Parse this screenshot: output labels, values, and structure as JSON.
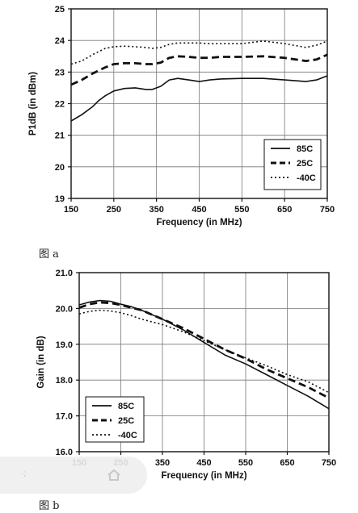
{
  "captions": {
    "a": "图 a",
    "b": "图 b"
  },
  "overlay": {
    "glyph": "·;",
    "home_icon": "home-icon"
  },
  "colors": {
    "line": "#111111",
    "grid": "#777777",
    "background": "#ffffff"
  },
  "chart_data": [
    {
      "type": "line",
      "title": "",
      "xlabel": "Frequency (in MHz)",
      "ylabel": "P1dB (in dBm)",
      "xlim": [
        150,
        750
      ],
      "ylim": [
        19,
        25
      ],
      "xticks": [
        150,
        250,
        350,
        450,
        550,
        650,
        750
      ],
      "yticks": [
        19,
        20,
        21,
        22,
        23,
        24,
        25
      ],
      "ytick_labels": [
        "19",
        "20",
        "21",
        "22",
        "23",
        "24",
        "25"
      ],
      "grid": true,
      "legend_position": "bottom-right",
      "x": [
        150,
        175,
        200,
        215,
        230,
        250,
        275,
        300,
        325,
        340,
        360,
        380,
        400,
        425,
        450,
        475,
        500,
        550,
        600,
        650,
        700,
        725,
        750
      ],
      "series": [
        {
          "name": "85C",
          "style": "solid",
          "values": [
            21.45,
            21.65,
            21.9,
            22.1,
            22.25,
            22.4,
            22.48,
            22.5,
            22.45,
            22.45,
            22.55,
            22.75,
            22.8,
            22.75,
            22.7,
            22.75,
            22.78,
            22.8,
            22.8,
            22.75,
            22.7,
            22.75,
            22.88
          ]
        },
        {
          "name": "25C",
          "style": "dashed",
          "values": [
            22.6,
            22.75,
            22.95,
            23.05,
            23.15,
            23.25,
            23.28,
            23.28,
            23.25,
            23.25,
            23.3,
            23.45,
            23.5,
            23.48,
            23.45,
            23.45,
            23.48,
            23.48,
            23.5,
            23.45,
            23.35,
            23.4,
            23.55
          ]
        },
        {
          "name": "-40C",
          "style": "dotted",
          "values": [
            23.25,
            23.35,
            23.55,
            23.65,
            23.75,
            23.8,
            23.82,
            23.8,
            23.78,
            23.75,
            23.78,
            23.88,
            23.92,
            23.92,
            23.92,
            23.9,
            23.9,
            23.9,
            23.98,
            23.9,
            23.78,
            23.85,
            23.98
          ]
        }
      ]
    },
    {
      "type": "line",
      "title": "",
      "xlabel": "Frequency (in MHz)",
      "ylabel": "Gain (in dB)",
      "xlim": [
        150,
        750
      ],
      "ylim": [
        16,
        21
      ],
      "xticks": [
        150,
        250,
        350,
        450,
        550,
        650,
        750
      ],
      "yticks": [
        16,
        17,
        18,
        19,
        20,
        21
      ],
      "ytick_labels": [
        "16.0",
        "17.0",
        "18.0",
        "19.0",
        "20.0",
        "21.0"
      ],
      "grid": true,
      "legend_position": "bottom-left",
      "x": [
        150,
        175,
        200,
        225,
        250,
        275,
        300,
        350,
        400,
        450,
        500,
        550,
        600,
        650,
        700,
        750
      ],
      "series": [
        {
          "name": "85C",
          "style": "solid",
          "values": [
            20.1,
            20.18,
            20.22,
            20.2,
            20.12,
            20.05,
            19.95,
            19.7,
            19.4,
            19.05,
            18.7,
            18.45,
            18.15,
            17.85,
            17.55,
            17.2
          ]
        },
        {
          "name": "25C",
          "style": "dashed",
          "values": [
            20.02,
            20.12,
            20.17,
            20.15,
            20.1,
            20.02,
            19.95,
            19.7,
            19.45,
            19.15,
            18.85,
            18.6,
            18.3,
            18.05,
            17.8,
            17.5
          ]
        },
        {
          "name": "-40C",
          "style": "dotted",
          "values": [
            19.85,
            19.92,
            19.95,
            19.93,
            19.88,
            19.8,
            19.7,
            19.55,
            19.35,
            19.1,
            18.85,
            18.62,
            18.4,
            18.15,
            17.95,
            17.65
          ]
        }
      ]
    }
  ]
}
